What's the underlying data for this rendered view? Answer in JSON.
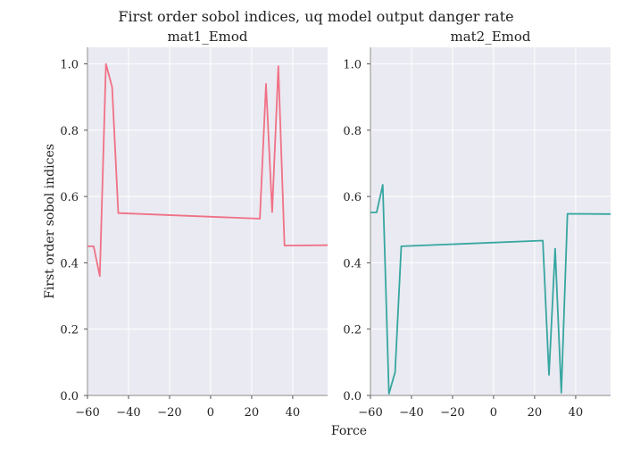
{
  "figure": {
    "suptitle": "First order sobol indices, uq model output danger rate",
    "xlabel": "Force",
    "ylabel": "First order sobol indices"
  },
  "chart_data": [
    {
      "type": "line",
      "title": "mat1_Emod",
      "xlabel": "Force",
      "ylabel": "First order sobol indices",
      "xlim": [
        -60,
        57
      ],
      "ylim": [
        0,
        1.05
      ],
      "xticks": [
        -60,
        -40,
        -20,
        0,
        20,
        40
      ],
      "xtick_labels": [
        "−60",
        "−40",
        "−20",
        "0",
        "20",
        "40"
      ],
      "yticks": [
        0.0,
        0.2,
        0.4,
        0.6,
        0.8,
        1.0
      ],
      "ytick_labels": [
        "0.0",
        "0.2",
        "0.4",
        "0.6",
        "0.8",
        "1.0"
      ],
      "grid": true,
      "color": "#f07185",
      "x": [
        -60,
        -57,
        -54,
        -51,
        -48,
        -45,
        24,
        27,
        30,
        33,
        36,
        57
      ],
      "y": [
        0.45,
        0.45,
        0.36,
        1.0,
        0.93,
        0.55,
        0.533,
        0.94,
        0.553,
        0.993,
        0.452,
        0.453
      ]
    },
    {
      "type": "line",
      "title": "mat2_Emod",
      "xlabel": "Force",
      "ylabel": "",
      "xlim": [
        -60,
        57
      ],
      "ylim": [
        0,
        1.05
      ],
      "xticks": [
        -60,
        -40,
        -20,
        0,
        20,
        40
      ],
      "xtick_labels": [
        "−60",
        "−40",
        "−20",
        "0",
        "20",
        "40"
      ],
      "yticks": [
        0.0,
        0.2,
        0.4,
        0.6,
        0.8,
        1.0
      ],
      "ytick_labels": [
        "0.0",
        "0.2",
        "0.4",
        "0.6",
        "0.8",
        "1.0"
      ],
      "grid": true,
      "color": "#36a6a0",
      "x": [
        -60,
        -57,
        -54,
        -51,
        -48,
        -45,
        24,
        27,
        30,
        33,
        36,
        57
      ],
      "y": [
        0.552,
        0.552,
        0.635,
        0.005,
        0.07,
        0.45,
        0.467,
        0.062,
        0.443,
        0.008,
        0.548,
        0.547
      ]
    }
  ]
}
